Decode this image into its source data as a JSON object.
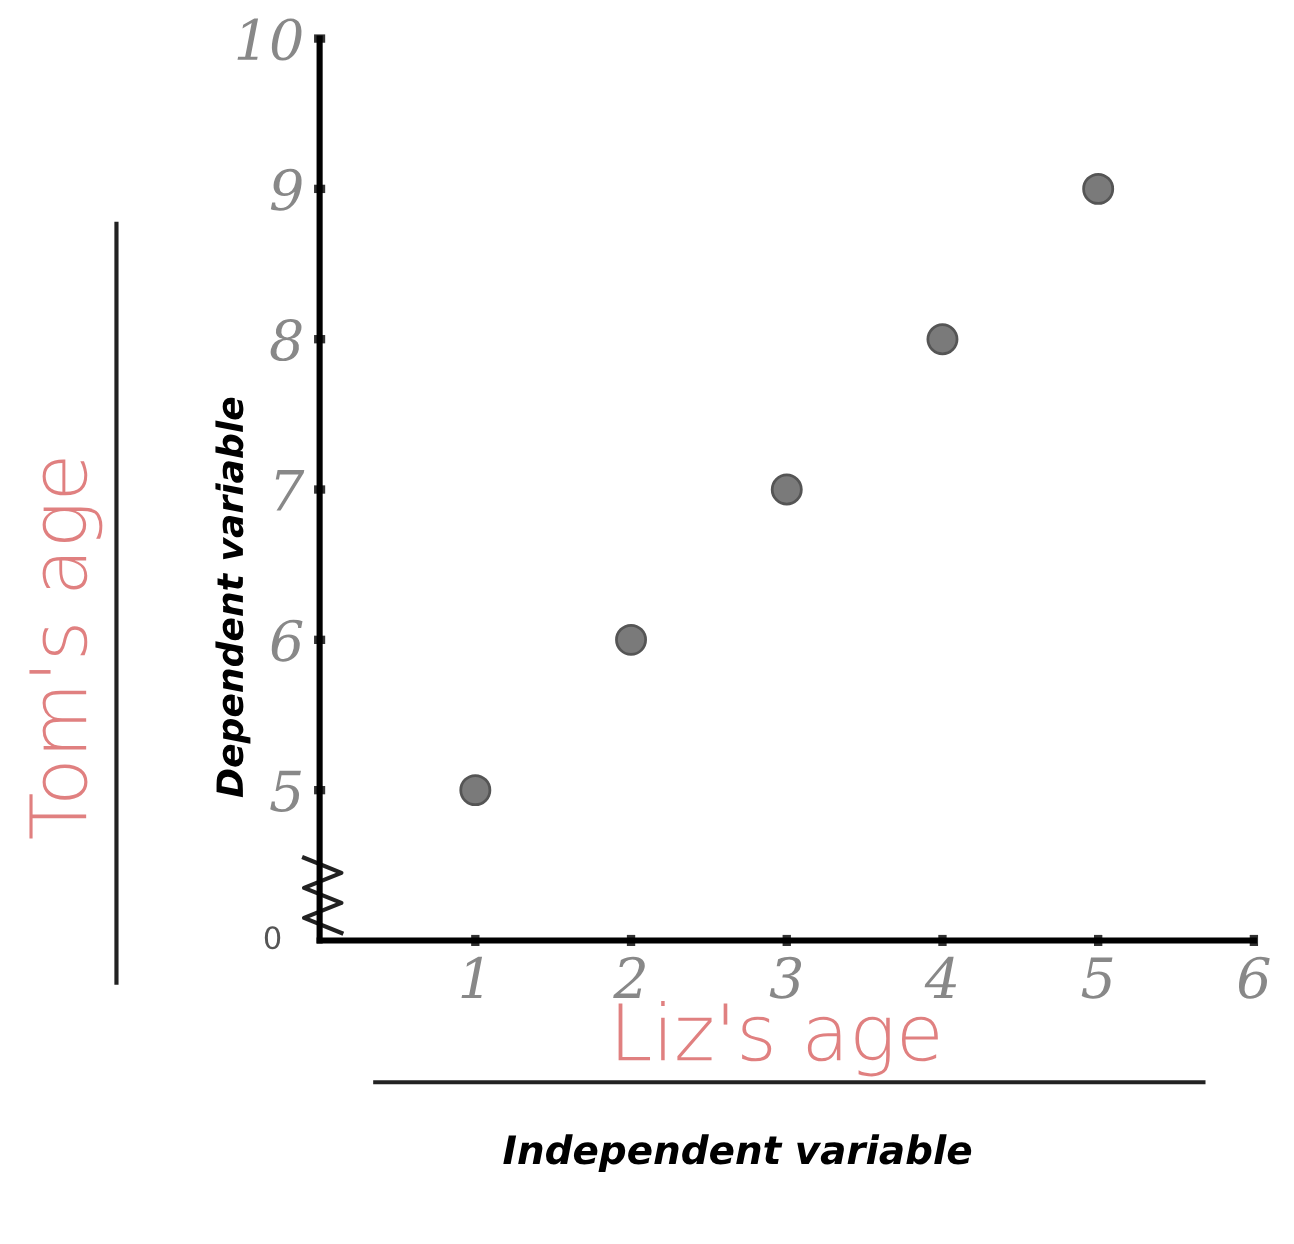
{
  "chart_data": {
    "type": "scatter",
    "xlabel": "Liz's age",
    "ylabel": "Tom's age",
    "annotations": [
      "Independent variable",
      "Dependent variable",
      "0"
    ],
    "x": [
      1,
      2,
      3,
      4,
      5
    ],
    "values": [
      5,
      6,
      7,
      8,
      9
    ],
    "color": "#7a7a7a",
    "marker": "circle",
    "xlim": [
      0,
      6
    ],
    "xticks": [
      1,
      2,
      3,
      4,
      5,
      6
    ],
    "ylim": [
      4,
      10
    ],
    "yticks": [
      5,
      6,
      7,
      8,
      9,
      10
    ],
    "grid": false,
    "legend": false
  }
}
